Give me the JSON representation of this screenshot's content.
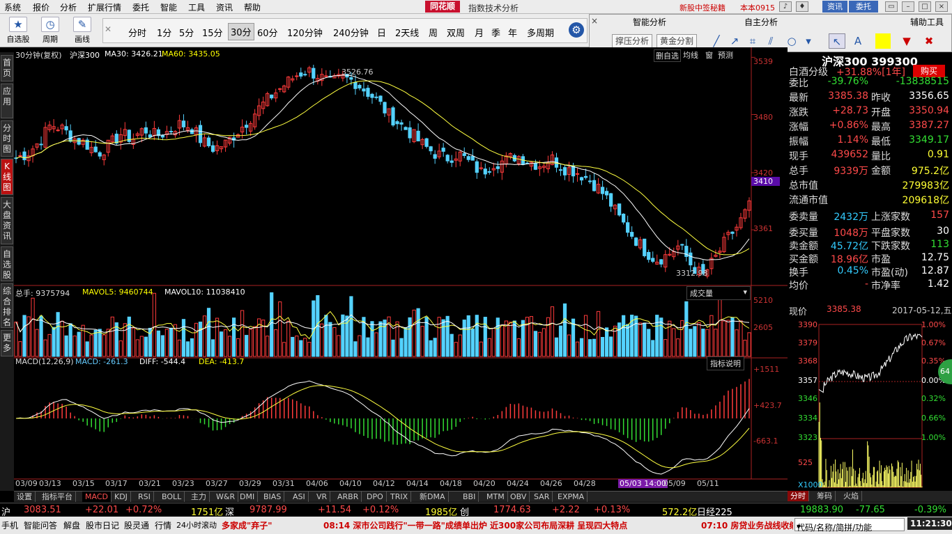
{
  "menu": {
    "items": [
      "系统",
      "报价",
      "分析",
      "扩展行情",
      "委托",
      "智能",
      "工具",
      "资讯",
      "帮助"
    ],
    "brand": "同花顺",
    "title": "指数技术分析",
    "promo": "新股中签秘籍",
    "version": "本本0915",
    "btn_news": "资讯",
    "btn_trade": "委托"
  },
  "toolbar": {
    "tools": [
      "自选股",
      "周期",
      "画线"
    ],
    "periods": [
      "分时",
      "1分",
      "5分",
      "15分",
      "30分",
      "60分",
      "120分钟",
      "240分钟",
      "日",
      "2天线",
      "周",
      "双周",
      "月",
      "季",
      "年",
      "多周期"
    ],
    "selected_period": "30分"
  },
  "right_panel": {
    "close": "×",
    "sections": [
      "智能分析",
      "自主分析",
      "辅助工具"
    ],
    "buttons": [
      "撑压分析",
      "黄金分割"
    ]
  },
  "left_tabs": [
    "首页",
    "应用",
    "分时图",
    "K线图",
    "大盘资讯",
    "自选股",
    "综合排名",
    "更多"
  ],
  "chart": {
    "price_header": "30分钟(复权)  沪深300  MA30: 3426.21↓  MA60: 3435.05↓",
    "hdr_name": "30分钟(复权)",
    "hdr_sym": "沪深300",
    "hdr_ma30": "MA30: 3426.21",
    "hdr_ma60": "MA60: 3435.05",
    "corner_buttons": [
      "删自选",
      "均线",
      "窗",
      "预测"
    ],
    "high_label": "3526.76",
    "low_label": "3312.98",
    "price_axis": [
      "3539",
      "3480",
      "3420",
      "3410",
      "3361"
    ],
    "vol_header_total": "总手: 9375794",
    "vol_header_ma5": "MAVOL5: 9460744",
    "vol_header_ma10": "MAVOL10: 11038410",
    "vol_dropdown": "成交量",
    "vol_axis": [
      "5210",
      "2605"
    ],
    "macd_header_name": "MACD(12,26,9)",
    "macd_header_macd": "MACD: -261.3",
    "macd_header_diff": "DIFF: -544.4",
    "macd_header_dea": "DEA: -413.7",
    "macd_help": "指标说明",
    "macd_axis": [
      "+1511",
      "+423.7",
      "-663.1"
    ],
    "date_axis": [
      "03/09",
      "03/13",
      "03/15",
      "03/17",
      "03/21",
      "03/23",
      "03/27",
      "03/29",
      "03/31",
      "04/06",
      "04/10",
      "04/12",
      "04/14",
      "04/18",
      "04/20",
      "04/24",
      "04/26",
      "04/28",
      "05/03 14:00",
      "05/09",
      "05/11"
    ]
  },
  "chart_data": {
    "type": "candlestick",
    "title": "30分钟(复权) 沪深300",
    "price_range": [
      3305,
      3545
    ],
    "series_close_approx": [
      3435,
      3440,
      3452,
      3470,
      3465,
      3455,
      3450,
      3440,
      3448,
      3460,
      3455,
      3465,
      3458,
      3462,
      3470,
      3468,
      3452,
      3445,
      3450,
      3462,
      3475,
      3488,
      3500,
      3510,
      3520,
      3526,
      3520,
      3512,
      3518,
      3515,
      3505,
      3495,
      3480,
      3470,
      3460,
      3448,
      3440,
      3435,
      3440,
      3430,
      3420,
      3430,
      3432,
      3438,
      3432,
      3428,
      3435,
      3425,
      3422,
      3415,
      3405,
      3390,
      3370,
      3355,
      3340,
      3330,
      3335,
      3345,
      3325,
      3313,
      3330,
      3350,
      3365,
      3385
    ],
    "ma30": 3426.21,
    "ma60": 3435.05,
    "volume_total": 9375794,
    "mavol5": 9460744,
    "mavol10": 11038410,
    "macd": -261.3,
    "diff": -544.4,
    "dea": -413.7
  },
  "info": {
    "title": "沪深300 399300",
    "rows": [
      {
        "k": "白酒分级",
        "v": "+31.88%[1年]",
        "btn": "购买"
      },
      {
        "k": "委比",
        "v": "-39.76%",
        "v2": "-13838515"
      },
      {
        "k": "最新",
        "v": "3385.38",
        "k2": "昨收",
        "v2": "3356.65"
      },
      {
        "k": "涨跌",
        "v": "+28.73",
        "k2": "开盘",
        "v2": "3350.94"
      },
      {
        "k": "涨幅",
        "v": "+0.86%",
        "k2": "最高",
        "v2": "3387.27"
      },
      {
        "k": "振幅",
        "v": "1.14%",
        "k2": "最低",
        "v2": "3349.17"
      },
      {
        "k": "现手",
        "v": "439652",
        "k2": "量比",
        "v2": "0.91"
      },
      {
        "k": "总手",
        "v": "9339万",
        "k2": "金额",
        "v2": "975.2亿"
      },
      {
        "k": "总市值",
        "v2": "279983亿"
      },
      {
        "k": "流通市值",
        "v2": "209618亿"
      },
      {
        "k": "委卖量",
        "v": "2432万",
        "k2": "上涨家数",
        "v2": "157"
      },
      {
        "k": "委买量",
        "v": "1048万",
        "k2": "平盘家数",
        "v2": "30"
      },
      {
        "k": "卖金额",
        "v": "45.72亿",
        "k2": "下跌家数",
        "v2": "113"
      },
      {
        "k": "买金额",
        "v": "18.96亿",
        "k2": "市盈",
        "v2": "12.75"
      },
      {
        "k": "换手",
        "v": "0.45%",
        "k2": "市盈(动)",
        "v2": "12.87"
      },
      {
        "k": "均价",
        "v": "-",
        "k2": "市净率",
        "v2": "1.42"
      }
    ],
    "mini": {
      "label": "现价",
      "price": "3385.38",
      "date": "2017-05-12,五",
      "left_axis": [
        "3390",
        "3379",
        "3368",
        "3357",
        "3346",
        "3334",
        "3323",
        "525",
        "X1000"
      ],
      "right_axis": [
        "1.00%",
        "0.67%",
        "0.35%",
        "0.00%",
        "0.32%",
        "0.66%",
        "1.00%"
      ],
      "badge": "64"
    },
    "tabs": [
      "分时",
      "筹码",
      "火焰"
    ]
  },
  "bottom_tabs": [
    "设置",
    "指标平台",
    "MACD",
    "KDJ",
    "RSI",
    "BOLL",
    "主力",
    "W&R",
    "DMI",
    "BIAS",
    "ASI",
    "VR",
    "ARBR",
    "DPO",
    "TRIX",
    "新DMA",
    "BBI",
    "MTM",
    "OBV",
    "SAR",
    "EXPMA"
  ],
  "status1": {
    "sh_label": "沪",
    "sh_val": "3083.51",
    "sh_chg": "+22.01",
    "sh_pct": "+0.72%",
    "sh_amt": "1751亿",
    "sz_label": "深",
    "sz_val": "9787.99",
    "sz_chg": "+11.54",
    "sz_pct": "+0.12%",
    "sz_amt": "1985亿",
    "cy_label": "创",
    "cy_val": "1774.63",
    "cy_chg": "+2.22",
    "cy_pct": "+0.13%",
    "cy_amt": "572.2亿",
    "nk_label": "日经225",
    "nk_val": "19883.90",
    "nk_chg": "-77.65",
    "nk_pct": "-0.39%"
  },
  "status2": {
    "items": [
      "手机",
      "智能问答",
      "解盘",
      "股市日记",
      "股灵通",
      "行情",
      "24小时滚动"
    ],
    "news1": "多家成\"弃子\"",
    "news2": "08:14 深市公司践行\"一带一路\"成绩单出炉 近300家公司布局深耕 呈现四大特点",
    "news3": "07:10 房贷业务战线收缩",
    "search": "代码/名称/简拼/功能",
    "time": "11:21:30"
  }
}
